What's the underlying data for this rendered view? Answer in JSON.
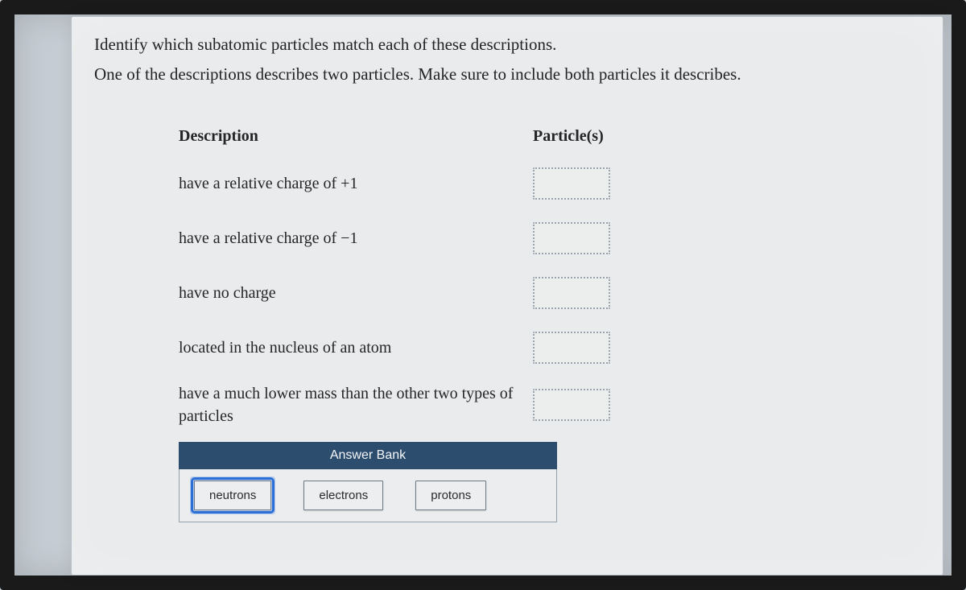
{
  "intro": {
    "line1": "Identify which subatomic particles match each of these descriptions.",
    "line2": "One of the descriptions describes two particles. Make sure to include both particles it describes."
  },
  "headers": {
    "description": "Description",
    "particles": "Particle(s)"
  },
  "rows": [
    {
      "description": "have a relative charge of +1"
    },
    {
      "description": "have a relative charge of −1"
    },
    {
      "description": "have no charge"
    },
    {
      "description": "located in the nucleus of an atom"
    },
    {
      "description": "have a much lower mass than the other two types of particles"
    }
  ],
  "answer_bank": {
    "title": "Answer Bank",
    "tiles": [
      {
        "label": "neutrons",
        "selected": true
      },
      {
        "label": "electrons",
        "selected": false
      },
      {
        "label": "protons",
        "selected": false
      }
    ]
  },
  "colors": {
    "panel_bg": "#e9ebec",
    "frame_bg": "#cad0d6",
    "bank_header_bg": "#2d4d6f",
    "tile_bg": "#eceeef",
    "tile_border": "#6d7a86",
    "dropzone_border": "#9ba4ad",
    "selection_outline": "#2c6fd6",
    "text_color": "#242526"
  }
}
